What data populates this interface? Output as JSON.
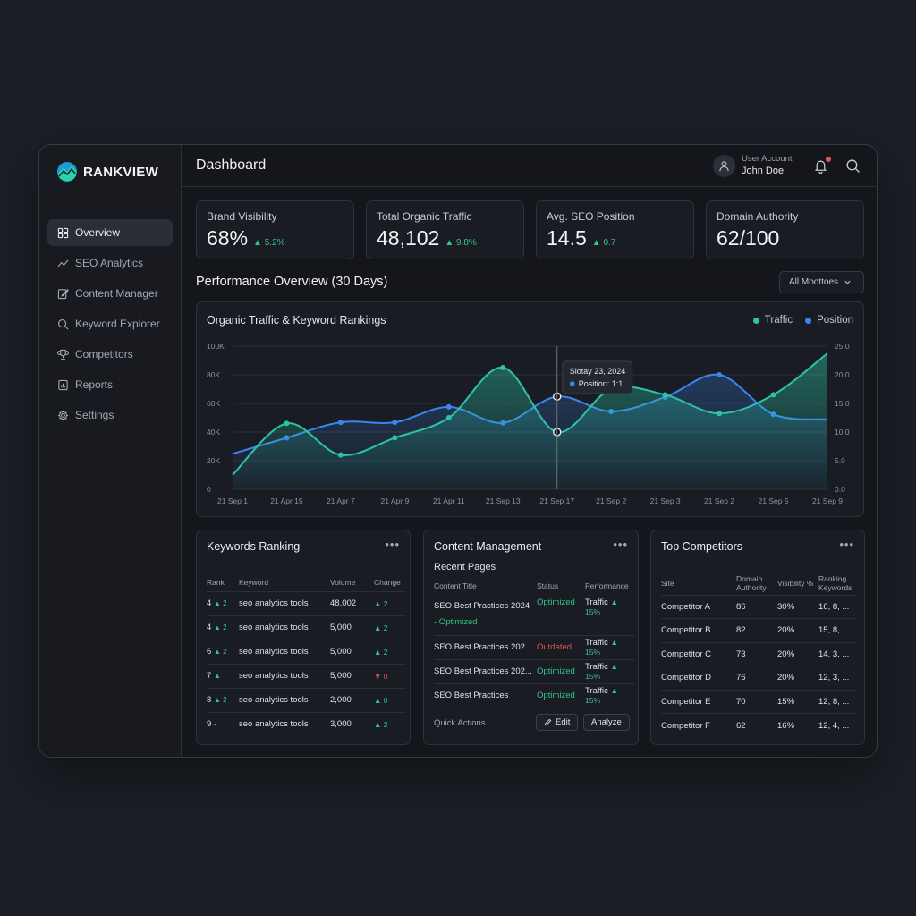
{
  "app": {
    "name": "RANKVIEW"
  },
  "sidebar": {
    "items": [
      {
        "label": "Overview",
        "icon": "grid-icon"
      },
      {
        "label": "SEO Analytics",
        "icon": "trend-icon"
      },
      {
        "label": "Content Manager",
        "icon": "edit-icon"
      },
      {
        "label": "Keyword Explorer",
        "icon": "search-icon"
      },
      {
        "label": "Competitors",
        "icon": "trophy-icon"
      },
      {
        "label": "Reports",
        "icon": "report-icon"
      },
      {
        "label": "Settings",
        "icon": "gear-icon"
      }
    ]
  },
  "header": {
    "title": "Dashboard",
    "user_caption": "User Account",
    "user_name": "John Doe"
  },
  "kpis": [
    {
      "label": "Brand Visibility",
      "value": "68%",
      "delta": "▲ 5.2%"
    },
    {
      "label": "Total Organic Traffic",
      "value": "48,102",
      "delta": "▲ 9.8%"
    },
    {
      "label": "Avg. SEO Position",
      "value": "14.5",
      "delta": "▲ 0.7"
    },
    {
      "label": "Domain Authority",
      "value": "62/100",
      "delta": ""
    }
  ],
  "performance": {
    "title": "Performance Overview (30 Days)",
    "filter": "All Moottoes"
  },
  "chart_data": {
    "type": "area",
    "title": "Organic Traffic & Keyword Rankings",
    "x": [
      "21 Sep 1",
      "21 Apr 15",
      "21 Apr 7",
      "21 Apr 9",
      "21 Apr 11",
      "21 Sep 13",
      "21 Sep 17",
      "21 Sep 2",
      "21 Sep 3",
      "21 Sep 2",
      "21 Sep 5",
      "21 Sep 9"
    ],
    "y_left_ticks": [
      "100K",
      "80K",
      "60K",
      "40K",
      "20K",
      "0"
    ],
    "y_right_ticks": [
      "25.0",
      "20.0",
      "15.0",
      "10.0",
      "5.0",
      "0.0"
    ],
    "ylim_left": [
      0,
      100000
    ],
    "ylim_right": [
      0,
      25
    ],
    "grid": true,
    "legend": "top-right",
    "series": [
      {
        "name": "Traffic",
        "color": "#2bc4a6",
        "axis": "left",
        "values": [
          10000,
          46000,
          24000,
          36000,
          50000,
          85000,
          40000,
          70000,
          66000,
          53000,
          66000,
          95000
        ]
      },
      {
        "name": "Position",
        "color": "#3a86f0",
        "axis": "right",
        "values": [
          6.2,
          9.0,
          11.7,
          11.7,
          14.4,
          11.6,
          16.2,
          13.6,
          16.1,
          20.0,
          13.1,
          12.2
        ]
      }
    ],
    "tooltip": {
      "title": "Siotay 23, 2024",
      "text": "Position: 1:1"
    }
  },
  "keywords": {
    "title": "Keywords Ranking",
    "headers": [
      "Rank",
      "Keyword",
      "Volume",
      "Change"
    ],
    "rows": [
      {
        "rank": "4",
        "trend": "▲ 2",
        "dir": "up",
        "keyword": "seo analytics tools",
        "volume": "48,002",
        "change": "▲ 2",
        "cdir": "up"
      },
      {
        "rank": "4",
        "trend": "▲ 2",
        "dir": "up",
        "keyword": "seo analytics tools",
        "volume": "5,000",
        "change": "▲ 2",
        "cdir": "up"
      },
      {
        "rank": "6",
        "trend": "▲ 2",
        "dir": "up",
        "keyword": "seo analytics tools",
        "volume": "5,000",
        "change": "▲ 2",
        "cdir": "up"
      },
      {
        "rank": "7",
        "trend": "▲",
        "dir": "up",
        "keyword": "seo analytics tools",
        "volume": "5,000",
        "change": "▼ 0",
        "cdir": "down"
      },
      {
        "rank": "8",
        "trend": "▲ 2",
        "dir": "up",
        "keyword": "seo analytics tools",
        "volume": "2,000",
        "change": "▲ 0",
        "cdir": "up"
      },
      {
        "rank": "9",
        "trend": "-",
        "dir": "flat",
        "keyword": "seo analytics tools",
        "volume": "3,000",
        "change": "▲ 2",
        "cdir": "up"
      }
    ]
  },
  "content": {
    "title": "Content Management",
    "subtitle": "Recent Pages",
    "headers": [
      "Content Title",
      "Status",
      "Performance"
    ],
    "rows": [
      {
        "title": "SEO Best Practices 2024",
        "title2": "- Optimized",
        "status": "Optimized",
        "state": "ok",
        "perf": "Traffic",
        "perf_delta": "▲ 15%"
      },
      {
        "title": "SEO Best Practices 202...",
        "title2": "",
        "status": "Outdated",
        "state": "bad",
        "perf": "Traffic",
        "perf_delta": "▲ 15%"
      },
      {
        "title": "SEO Best Practices 202...",
        "title2": "",
        "status": "Optimized",
        "state": "ok",
        "perf": "Traffic",
        "perf_delta": "▲ 15%"
      },
      {
        "title": "SEO Best Practices",
        "title2": "",
        "status": "Optimized",
        "state": "ok",
        "perf": "Traffic",
        "perf_delta": "▲ 15%"
      }
    ],
    "quick_actions": "Quick Actions",
    "edit_label": "Edit",
    "analyze_label": "Analyze"
  },
  "competitors": {
    "title": "Top Competitors",
    "headers": [
      "Site",
      "Domain Authority",
      "Visibility %",
      "Ranking Keywords"
    ],
    "rows": [
      {
        "site": "Competitor A",
        "da": "86",
        "vis": "30%",
        "kw": "16, 8, ..."
      },
      {
        "site": "Competitor B",
        "da": "82",
        "vis": "20%",
        "kw": "15, 8, ..."
      },
      {
        "site": "Competitor C",
        "da": "73",
        "vis": "20%",
        "kw": "14, 3, ..."
      },
      {
        "site": "Competitor D",
        "da": "76",
        "vis": "20%",
        "kw": "12, 3, ..."
      },
      {
        "site": "Competitor E",
        "da": "70",
        "vis": "15%",
        "kw": "12, 8, ..."
      },
      {
        "site": "Competitor F",
        "da": "62",
        "vis": "16%",
        "kw": "12, 4, ..."
      }
    ]
  }
}
